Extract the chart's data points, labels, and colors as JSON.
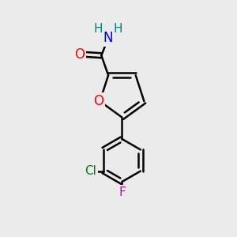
{
  "background_color": "#ebebeb",
  "bond_color": "#000000",
  "bond_width": 1.8,
  "atom_colors": {
    "O": "#ff0000",
    "N": "#0000cc",
    "Cl": "#008000",
    "F": "#cc00cc",
    "H": "#008080",
    "C": "#000000"
  },
  "font_size": 11,
  "figsize": [
    3.0,
    3.0
  ],
  "dpi": 100
}
